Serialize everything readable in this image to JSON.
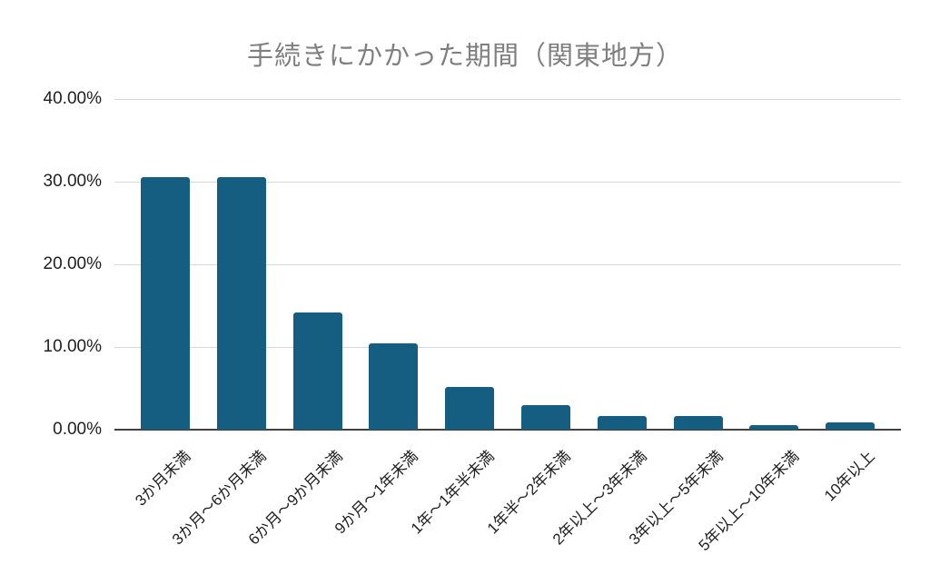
{
  "chart_data": {
    "type": "bar",
    "title": "手続きにかかった期間（関東地方）",
    "categories": [
      "3か月未満",
      "3か月～6か月未満",
      "6か月～9か月未満",
      "9か月～1年未満",
      "1年～1年半未満",
      "1年半～2年未満",
      "2年以上～3年未満",
      "3年以上～5年未満",
      "5年以上～10年未満",
      "10年以上"
    ],
    "values": [
      30.6,
      30.6,
      14.2,
      10.4,
      5.2,
      3.0,
      1.6,
      1.6,
      0.6,
      0.9
    ],
    "y_ticks": [
      {
        "label": "40.00%",
        "value": 40
      },
      {
        "label": "30.00%",
        "value": 30
      },
      {
        "label": "20.00%",
        "value": 20
      },
      {
        "label": "10.00%",
        "value": 10
      },
      {
        "label": "0.00%",
        "value": 0
      }
    ],
    "xlabel": "",
    "ylabel": "",
    "ylim": [
      0,
      40
    ],
    "grid": true,
    "legend": "none",
    "colors": {
      "bar": "#155e82",
      "title_text": "#7f7f7f",
      "axis_text": "#212121",
      "gridline": "#d9d9d9",
      "axis_line": "#404040",
      "background": "#ffffff"
    }
  }
}
